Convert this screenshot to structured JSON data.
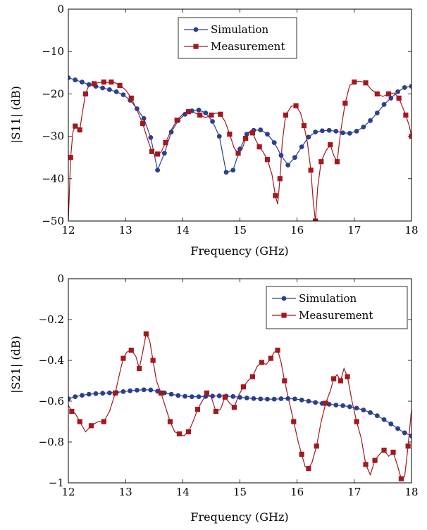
{
  "colors": {
    "simulation": "#2b3f8e",
    "measurement": "#a3181f",
    "frame": "#000000"
  },
  "chart_data": [
    {
      "type": "line",
      "xlabel": "Frequency (GHz)",
      "ylabel": "|S11| (dB)",
      "xlim": [
        12,
        18
      ],
      "ylim": [
        -50,
        0
      ],
      "xticks": [
        12,
        13,
        14,
        15,
        16,
        17,
        18
      ],
      "yticks": [
        0,
        -10,
        -20,
        -30,
        -40,
        -50
      ],
      "xtick_labels": [
        "12",
        "13",
        "14",
        "15",
        "16",
        "17",
        "18"
      ],
      "ytick_labels": [
        "0",
        "−10",
        "−20",
        "−30",
        "−40",
        "−50"
      ],
      "legend": {
        "position": "top-center",
        "entries": [
          "Simulation",
          "Measurement"
        ]
      },
      "series": [
        {
          "name": "Simulation",
          "marker": "circle",
          "x": [
            12.0,
            12.12,
            12.24,
            12.36,
            12.48,
            12.6,
            12.72,
            12.84,
            12.96,
            13.08,
            13.2,
            13.32,
            13.44,
            13.56,
            13.68,
            13.8,
            13.92,
            14.04,
            14.16,
            14.28,
            14.4,
            14.52,
            14.64,
            14.76,
            14.88,
            15.0,
            15.12,
            15.24,
            15.36,
            15.48,
            15.6,
            15.72,
            15.84,
            15.96,
            16.08,
            16.2,
            16.32,
            16.44,
            16.56,
            16.68,
            16.8,
            16.92,
            17.04,
            17.16,
            17.28,
            17.4,
            17.52,
            17.64,
            17.76,
            17.88,
            18.0
          ],
          "y": [
            -16.2,
            -16.7,
            -17.2,
            -17.8,
            -18.2,
            -18.6,
            -19.0,
            -19.5,
            -20.2,
            -21.5,
            -23.5,
            -25.8,
            -30.3,
            -38.0,
            -34.0,
            -29.0,
            -26.3,
            -24.8,
            -24.0,
            -23.8,
            -24.5,
            -26.5,
            -30.0,
            -38.5,
            -38.0,
            -33.0,
            -29.5,
            -28.6,
            -28.5,
            -29.5,
            -31.5,
            -34.5,
            -36.8,
            -35.0,
            -32.5,
            -30.2,
            -29.0,
            -28.7,
            -28.6,
            -28.8,
            -29.2,
            -29.3,
            -28.8,
            -27.8,
            -26.3,
            -24.5,
            -22.5,
            -21.0,
            -19.5,
            -18.5,
            -18.2
          ]
        },
        {
          "name": "Measurement",
          "marker": "square",
          "x": [
            12.0,
            12.04,
            12.08,
            12.12,
            12.16,
            12.2,
            12.25,
            12.3,
            12.35,
            12.45,
            12.55,
            12.62,
            12.68,
            12.75,
            12.82,
            12.9,
            13.0,
            13.1,
            13.2,
            13.3,
            13.38,
            13.46,
            13.52,
            13.56,
            13.62,
            13.7,
            13.8,
            13.9,
            14.0,
            14.1,
            14.2,
            14.3,
            14.4,
            14.5,
            14.58,
            14.66,
            14.74,
            14.82,
            14.9,
            14.97,
            15.04,
            15.1,
            15.16,
            15.22,
            15.28,
            15.34,
            15.4,
            15.48,
            15.56,
            15.62,
            15.66,
            15.7,
            15.74,
            15.8,
            15.9,
            15.98,
            16.06,
            16.12,
            16.18,
            16.24,
            16.28,
            16.32,
            16.36,
            16.42,
            16.5,
            16.58,
            16.64,
            16.7,
            16.76,
            16.84,
            16.92,
            17.0,
            17.1,
            17.2,
            17.3,
            17.4,
            17.5,
            17.6,
            17.7,
            17.78,
            17.84,
            17.9,
            17.96,
            18.0
          ],
          "y": [
            -50.0,
            -35.0,
            -29.0,
            -27.6,
            -27.8,
            -28.5,
            -24.0,
            -20.0,
            -18.3,
            -17.6,
            -17.3,
            -17.2,
            -17.3,
            -17.2,
            -17.4,
            -18.0,
            -19.0,
            -21.0,
            -23.8,
            -27.0,
            -30.5,
            -33.6,
            -34.5,
            -34.2,
            -33.8,
            -31.5,
            -28.5,
            -26.2,
            -24.8,
            -24.2,
            -24.4,
            -25.0,
            -25.6,
            -25.0,
            -24.5,
            -24.8,
            -26.5,
            -29.5,
            -32.8,
            -34.0,
            -33.0,
            -30.5,
            -28.9,
            -29.2,
            -31.0,
            -32.5,
            -33.6,
            -35.5,
            -39.0,
            -44.0,
            -46.0,
            -40.0,
            -31.5,
            -25.0,
            -22.9,
            -22.8,
            -24.5,
            -27.5,
            -31.5,
            -38.0,
            -45.0,
            -50.0,
            -42.0,
            -36.0,
            -33.5,
            -32.0,
            -34.5,
            -36.0,
            -29.0,
            -22.2,
            -18.0,
            -17.2,
            -17.0,
            -17.4,
            -19.0,
            -20.0,
            -20.6,
            -20.0,
            -19.8,
            -21.0,
            -23.0,
            -25.0,
            -27.5,
            -30.0
          ]
        }
      ]
    },
    {
      "type": "line",
      "xlabel": "Frequency (GHz)",
      "ylabel": "|S21| (dB)",
      "xlim": [
        12,
        18
      ],
      "ylim": [
        -1,
        0
      ],
      "xticks": [
        12,
        13,
        14,
        15,
        16,
        17,
        18
      ],
      "yticks": [
        0,
        -0.2,
        -0.4,
        -0.6,
        -0.8,
        -1
      ],
      "xtick_labels": [
        "12",
        "13",
        "14",
        "15",
        "16",
        "17",
        "18"
      ],
      "ytick_labels": [
        "0",
        "−0.2",
        "−0.4",
        "−0.6",
        "−0.8",
        "−1"
      ],
      "legend": {
        "position": "top-right",
        "entries": [
          "Simulation",
          "Measurement"
        ]
      },
      "series": [
        {
          "name": "Simulation",
          "marker": "circle",
          "x": [
            12.0,
            12.12,
            12.24,
            12.36,
            12.48,
            12.6,
            12.72,
            12.84,
            12.96,
            13.08,
            13.2,
            13.32,
            13.44,
            13.56,
            13.68,
            13.8,
            13.92,
            14.04,
            14.16,
            14.28,
            14.4,
            14.52,
            14.64,
            14.76,
            14.88,
            15.0,
            15.12,
            15.24,
            15.36,
            15.48,
            15.6,
            15.72,
            15.84,
            15.96,
            16.08,
            16.2,
            16.32,
            16.44,
            16.56,
            16.68,
            16.8,
            16.92,
            17.04,
            17.16,
            17.28,
            17.4,
            17.52,
            17.64,
            17.76,
            17.88,
            18.0
          ],
          "y": [
            -0.588,
            -0.578,
            -0.571,
            -0.566,
            -0.563,
            -0.561,
            -0.559,
            -0.557,
            -0.553,
            -0.549,
            -0.546,
            -0.544,
            -0.545,
            -0.551,
            -0.559,
            -0.566,
            -0.572,
            -0.576,
            -0.578,
            -0.578,
            -0.577,
            -0.575,
            -0.574,
            -0.575,
            -0.577,
            -0.581,
            -0.584,
            -0.587,
            -0.589,
            -0.59,
            -0.59,
            -0.588,
            -0.587,
            -0.589,
            -0.594,
            -0.6,
            -0.606,
            -0.611,
            -0.615,
            -0.619,
            -0.622,
            -0.627,
            -0.634,
            -0.643,
            -0.656,
            -0.671,
            -0.69,
            -0.711,
            -0.734,
            -0.755,
            -0.77
          ]
        },
        {
          "name": "Measurement",
          "marker": "square",
          "x": [
            12.0,
            12.06,
            12.12,
            12.2,
            12.3,
            12.4,
            12.52,
            12.62,
            12.72,
            12.82,
            12.9,
            12.96,
            13.02,
            13.1,
            13.18,
            13.24,
            13.3,
            13.36,
            13.42,
            13.48,
            13.54,
            13.62,
            13.7,
            13.78,
            13.86,
            13.94,
            14.02,
            14.1,
            14.18,
            14.26,
            14.34,
            14.42,
            14.5,
            14.58,
            14.66,
            14.74,
            14.82,
            14.9,
            14.98,
            15.06,
            15.14,
            15.22,
            15.3,
            15.38,
            15.46,
            15.54,
            15.6,
            15.66,
            15.72,
            15.78,
            15.86,
            15.94,
            16.02,
            16.08,
            16.14,
            16.2,
            16.26,
            16.34,
            16.42,
            16.5,
            16.58,
            16.64,
            16.7,
            16.76,
            16.82,
            16.88,
            16.96,
            17.04,
            17.12,
            17.2,
            17.28,
            17.36,
            17.44,
            17.52,
            17.6,
            17.68,
            17.76,
            17.82,
            17.88,
            17.94,
            18.0
          ],
          "y": [
            -0.62,
            -0.65,
            -0.66,
            -0.7,
            -0.75,
            -0.72,
            -0.7,
            -0.7,
            -0.65,
            -0.56,
            -0.46,
            -0.39,
            -0.36,
            -0.35,
            -0.38,
            -0.44,
            -0.36,
            -0.27,
            -0.3,
            -0.4,
            -0.5,
            -0.56,
            -0.63,
            -0.7,
            -0.75,
            -0.76,
            -0.77,
            -0.75,
            -0.7,
            -0.64,
            -0.6,
            -0.56,
            -0.58,
            -0.65,
            -0.64,
            -0.58,
            -0.61,
            -0.63,
            -0.57,
            -0.53,
            -0.5,
            -0.48,
            -0.43,
            -0.41,
            -0.42,
            -0.39,
            -0.36,
            -0.35,
            -0.41,
            -0.5,
            -0.6,
            -0.7,
            -0.8,
            -0.86,
            -0.92,
            -0.93,
            -0.9,
            -0.82,
            -0.7,
            -0.61,
            -0.55,
            -0.49,
            -0.47,
            -0.5,
            -0.44,
            -0.48,
            -0.6,
            -0.7,
            -0.78,
            -0.91,
            -0.96,
            -0.89,
            -0.86,
            -0.84,
            -0.87,
            -0.85,
            -0.92,
            -0.98,
            -0.97,
            -0.82,
            -0.64
          ]
        }
      ]
    }
  ]
}
